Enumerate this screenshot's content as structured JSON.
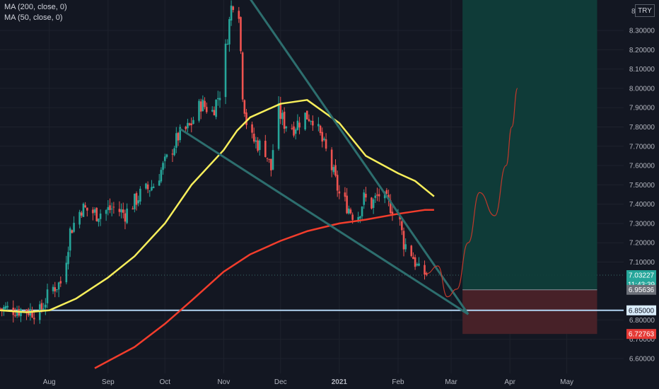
{
  "legend": [
    {
      "label": "MA (200, close, 0)"
    },
    {
      "label": "MA (50, close, 0)"
    }
  ],
  "currency": "TRY",
  "chart_data": {
    "type": "line",
    "price_axis": {
      "min": 6.55,
      "max": 8.52,
      "ticks": [
        8.3,
        8.2,
        8.1,
        8.0,
        7.9,
        7.8,
        7.7,
        7.6,
        7.5,
        7.4,
        7.3,
        7.2,
        7.1,
        6.8,
        6.7,
        6.6
      ],
      "tick_labels": [
        "8.30000",
        "8.20000",
        "8.10000",
        "8.00000",
        "7.90000",
        "7.80000",
        "7.70000",
        "7.60000",
        "7.50000",
        "7.40000",
        "7.30000",
        "7.20000",
        "7.10000",
        "6.80000",
        "6.70000",
        "6.60000"
      ],
      "top_partial_label": "8"
    },
    "time_axis": {
      "start": "2020-07-06",
      "end": "2021-05-31",
      "labels": [
        {
          "text": "Aug",
          "date": "2020-08-01"
        },
        {
          "text": "Sep",
          "date": "2020-09-01"
        },
        {
          "text": "Oct",
          "date": "2020-10-01"
        },
        {
          "text": "Nov",
          "date": "2020-11-01"
        },
        {
          "text": "Dec",
          "date": "2020-12-01"
        },
        {
          "text": "2021",
          "date": "2021-01-01"
        },
        {
          "text": "Feb",
          "date": "2021-02-01"
        },
        {
          "text": "Mar",
          "date": "2021-03-01"
        },
        {
          "text": "Apr",
          "date": "2021-04-01"
        },
        {
          "text": "May",
          "date": "2021-05-01"
        }
      ]
    },
    "price_path": [
      [
        "2020-07-06",
        6.86
      ],
      [
        "2020-07-20",
        6.85
      ],
      [
        "2020-07-27",
        6.84
      ],
      [
        "2020-08-02",
        6.96
      ],
      [
        "2020-08-08",
        7.0
      ],
      [
        "2020-08-12",
        7.26
      ],
      [
        "2020-08-18",
        7.38
      ],
      [
        "2020-08-26",
        7.35
      ],
      [
        "2020-09-04",
        7.38
      ],
      [
        "2020-09-10",
        7.35
      ],
      [
        "2020-09-18",
        7.45
      ],
      [
        "2020-09-25",
        7.5
      ],
      [
        "2020-10-02",
        7.63
      ],
      [
        "2020-10-08",
        7.75
      ],
      [
        "2020-10-14",
        7.8
      ],
      [
        "2020-10-20",
        7.92
      ],
      [
        "2020-10-26",
        7.88
      ],
      [
        "2020-10-30",
        7.98
      ],
      [
        "2020-11-02",
        8.2
      ],
      [
        "2020-11-05",
        8.42
      ],
      [
        "2020-11-07",
        8.48
      ],
      [
        "2020-11-09",
        8.4
      ],
      [
        "2020-11-11",
        7.98
      ],
      [
        "2020-11-14",
        7.75
      ],
      [
        "2020-11-18",
        7.72
      ],
      [
        "2020-11-23",
        7.68
      ],
      [
        "2020-11-26",
        7.58
      ],
      [
        "2020-11-29",
        7.9
      ],
      [
        "2020-12-03",
        7.82
      ],
      [
        "2020-12-08",
        7.8
      ],
      [
        "2020-12-14",
        7.86
      ],
      [
        "2020-12-18",
        7.85
      ],
      [
        "2020-12-22",
        7.75
      ],
      [
        "2020-12-27",
        7.62
      ],
      [
        "2021-01-01",
        7.45
      ],
      [
        "2021-01-06",
        7.38
      ],
      [
        "2021-01-10",
        7.32
      ],
      [
        "2021-01-14",
        7.43
      ],
      [
        "2021-01-18",
        7.4
      ],
      [
        "2021-01-22",
        7.45
      ],
      [
        "2021-01-27",
        7.4
      ],
      [
        "2021-02-01",
        7.35
      ],
      [
        "2021-02-04",
        7.2
      ],
      [
        "2021-02-08",
        7.15
      ],
      [
        "2021-02-12",
        7.05
      ],
      [
        "2021-02-16",
        7.04
      ]
    ],
    "series": [
      {
        "name": "MA (200, close, 0)",
        "color": "#f23d2c",
        "points": [
          [
            "2020-08-25",
            6.55
          ],
          [
            "2020-09-15",
            6.66
          ],
          [
            "2020-10-01",
            6.78
          ],
          [
            "2020-10-15",
            6.9
          ],
          [
            "2020-11-01",
            7.05
          ],
          [
            "2020-11-15",
            7.14
          ],
          [
            "2020-12-01",
            7.21
          ],
          [
            "2020-12-15",
            7.26
          ],
          [
            "2021-01-01",
            7.3
          ],
          [
            "2021-01-15",
            7.32
          ],
          [
            "2021-02-01",
            7.35
          ],
          [
            "2021-02-15",
            7.37
          ],
          [
            "2021-02-20",
            7.37
          ]
        ]
      },
      {
        "name": "MA (50, close, 0)",
        "color": "#f7ee5b",
        "points": [
          [
            "2020-07-06",
            6.85
          ],
          [
            "2020-07-20",
            6.84
          ],
          [
            "2020-08-01",
            6.85
          ],
          [
            "2020-08-15",
            6.91
          ],
          [
            "2020-09-01",
            7.02
          ],
          [
            "2020-09-15",
            7.13
          ],
          [
            "2020-10-01",
            7.3
          ],
          [
            "2020-10-15",
            7.5
          ],
          [
            "2020-11-01",
            7.68
          ],
          [
            "2020-11-08",
            7.78
          ],
          [
            "2020-11-15",
            7.85
          ],
          [
            "2020-12-01",
            7.92
          ],
          [
            "2020-12-15",
            7.94
          ],
          [
            "2021-01-01",
            7.82
          ],
          [
            "2021-01-15",
            7.65
          ],
          [
            "2021-02-01",
            7.56
          ],
          [
            "2021-02-10",
            7.52
          ],
          [
            "2021-02-20",
            7.44
          ]
        ]
      }
    ],
    "projection": [
      [
        "2021-02-16",
        7.04
      ],
      [
        "2021-02-22",
        7.08
      ],
      [
        "2021-02-27",
        6.92
      ],
      [
        "2021-03-04",
        6.96
      ],
      [
        "2021-03-10",
        7.2
      ],
      [
        "2021-03-16",
        7.46
      ],
      [
        "2021-03-24",
        7.34
      ],
      [
        "2021-03-30",
        7.6
      ],
      [
        "2021-04-02",
        7.8
      ],
      [
        "2021-04-05",
        8.0
      ]
    ],
    "wedge_lines": [
      [
        [
          "2020-11-11",
          8.52
        ],
        [
          "2021-03-10",
          6.83
        ]
      ],
      [
        [
          "2020-10-09",
          7.79
        ],
        [
          "2021-03-10",
          6.83
        ]
      ]
    ],
    "horizontal_line": {
      "value": 6.85
    },
    "position": {
      "start": "2021-03-07",
      "end": "2021-05-17",
      "entry": 6.95636,
      "target": 8.52,
      "stop": 6.72763
    },
    "price_labels": [
      {
        "text": "7.03227",
        "value": 7.03227,
        "style": "current"
      },
      {
        "text": "11:43:39",
        "value": 6.985,
        "style": "countdown"
      },
      {
        "text": "6.95636",
        "value": 6.95636,
        "style": "entry"
      },
      {
        "text": "6.85000",
        "value": 6.85,
        "style": "line"
      },
      {
        "text": "6.72763",
        "value": 6.72763,
        "style": "stop"
      }
    ],
    "colors": {
      "up": "#26a69a",
      "down": "#ef5350",
      "wedge": "#2d6e6e",
      "hline": "#b2d4f2",
      "target_zone": "#0f3d3a",
      "stop_zone": "#4a2229",
      "projection": "#c0392b"
    }
  }
}
